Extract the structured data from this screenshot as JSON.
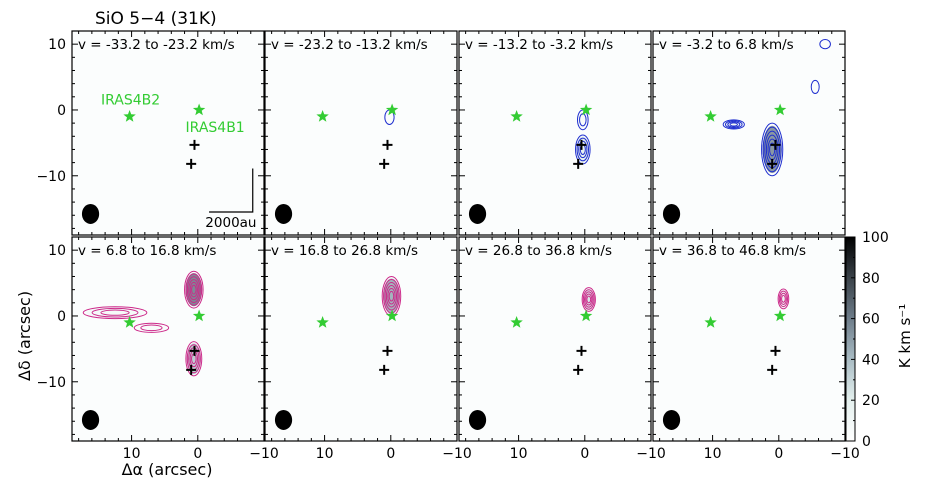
{
  "chart_data": {
    "type": "contour",
    "title": "SiO 5−4 (31K)",
    "xlabel": "Δα (arcsec)",
    "ylabel": "Δδ (arcsec)",
    "xlim": [
      19,
      -10
    ],
    "ylim": [
      -19,
      12
    ],
    "x_ticks": [
      10,
      0,
      -10
    ],
    "x_tick_labels": [
      "10",
      "0",
      "−10"
    ],
    "y_ticks": [
      10,
      0,
      -10
    ],
    "y_tick_labels": [
      "10",
      "0",
      "−10"
    ],
    "colorbar": {
      "label": "K km s⁻¹",
      "range": [
        0,
        100
      ],
      "ticks": [
        0,
        20,
        40,
        60,
        80,
        100
      ],
      "tick_labels": [
        "0",
        "20",
        "40",
        "60",
        "80",
        "100"
      ],
      "colormap": [
        "#ffffff",
        "#e4f0ee",
        "#a9bcc4",
        "#6e7d8a",
        "#3a4249",
        "#000000"
      ]
    },
    "sources": [
      {
        "name": "IRAS4B2",
        "x": 10.3,
        "y": -1.0,
        "marker": "star",
        "color": "#33cc33"
      },
      {
        "name": "IRAS4B1",
        "x": -0.2,
        "y": 0.0,
        "marker": "star",
        "color": "#33cc33"
      }
    ],
    "crosses": [
      {
        "x": 0.5,
        "y": -5.3
      },
      {
        "x": 1.0,
        "y": -8.2
      }
    ],
    "beam": {
      "x": 16.2,
      "y": -15.8,
      "major": 1.6,
      "minor": 1.3
    },
    "scalebar": {
      "label": "2000au",
      "length_arcsec": 6.6
    },
    "panels": [
      {
        "label": "v = -33.2 to -23.2 km/s",
        "color": "#1f2fcf",
        "emission": []
      },
      {
        "label": "v = -23.2 to -13.2 km/s",
        "color": "#1f2fcf",
        "emission": [
          {
            "x": 0.2,
            "y": -1.1,
            "rx": 0.7,
            "ry": 1.1,
            "levels": 1,
            "peak": 4
          }
        ]
      },
      {
        "label": "v = -13.2 to -3.2 km/s",
        "color": "#1f2fcf",
        "emission": [
          {
            "x": 0.3,
            "y": -1.5,
            "rx": 0.8,
            "ry": 1.5,
            "levels": 2,
            "peak": 6
          },
          {
            "x": 0.3,
            "y": -6.0,
            "rx": 1.1,
            "ry": 2.2,
            "levels": 4,
            "peak": 20
          }
        ]
      },
      {
        "label": "v = -3.2 to 6.8 km/s",
        "color": "#1f2fcf",
        "emission": [
          {
            "x": 1.0,
            "y": -6.0,
            "rx": 1.6,
            "ry": 4.0,
            "levels": 6,
            "peak": 55
          },
          {
            "x": 6.8,
            "y": -2.2,
            "rx": 1.6,
            "ry": 0.7,
            "levels": 4,
            "peak": 12
          },
          {
            "x": -5.5,
            "y": 3.5,
            "rx": 0.6,
            "ry": 1.0,
            "levels": 1,
            "peak": 3
          },
          {
            "x": -7.0,
            "y": 10.0,
            "rx": 0.8,
            "ry": 0.7,
            "levels": 1,
            "peak": 3
          }
        ]
      },
      {
        "label": "v = 6.8 to 16.8 km/s",
        "color": "#cc2a8a",
        "emission": [
          {
            "x": 0.6,
            "y": 4.0,
            "rx": 1.4,
            "ry": 2.8,
            "levels": 6,
            "peak": 60
          },
          {
            "x": 0.6,
            "y": -6.5,
            "rx": 1.2,
            "ry": 2.6,
            "levels": 5,
            "peak": 35
          },
          {
            "x": 12.5,
            "y": 0.5,
            "rx": 4.8,
            "ry": 0.9,
            "levels": 3,
            "peak": 8
          },
          {
            "x": 7.0,
            "y": -1.8,
            "rx": 2.6,
            "ry": 0.7,
            "levels": 2,
            "peak": 5
          }
        ]
      },
      {
        "label": "v = 16.8 to 26.8 km/s",
        "color": "#cc2a8a",
        "emission": [
          {
            "x": -0.1,
            "y": 3.0,
            "rx": 1.4,
            "ry": 3.0,
            "levels": 6,
            "peak": 45
          }
        ]
      },
      {
        "label": "v = 26.8 to 36.8 km/s",
        "color": "#cc2a8a",
        "emission": [
          {
            "x": -0.6,
            "y": 2.5,
            "rx": 1.0,
            "ry": 1.8,
            "levels": 5,
            "peak": 25
          }
        ]
      },
      {
        "label": "v = 36.8 to 46.8 km/s",
        "color": "#cc2a8a",
        "emission": [
          {
            "x": -0.7,
            "y": 2.6,
            "rx": 0.8,
            "ry": 1.5,
            "levels": 4,
            "peak": 15
          }
        ]
      }
    ]
  }
}
